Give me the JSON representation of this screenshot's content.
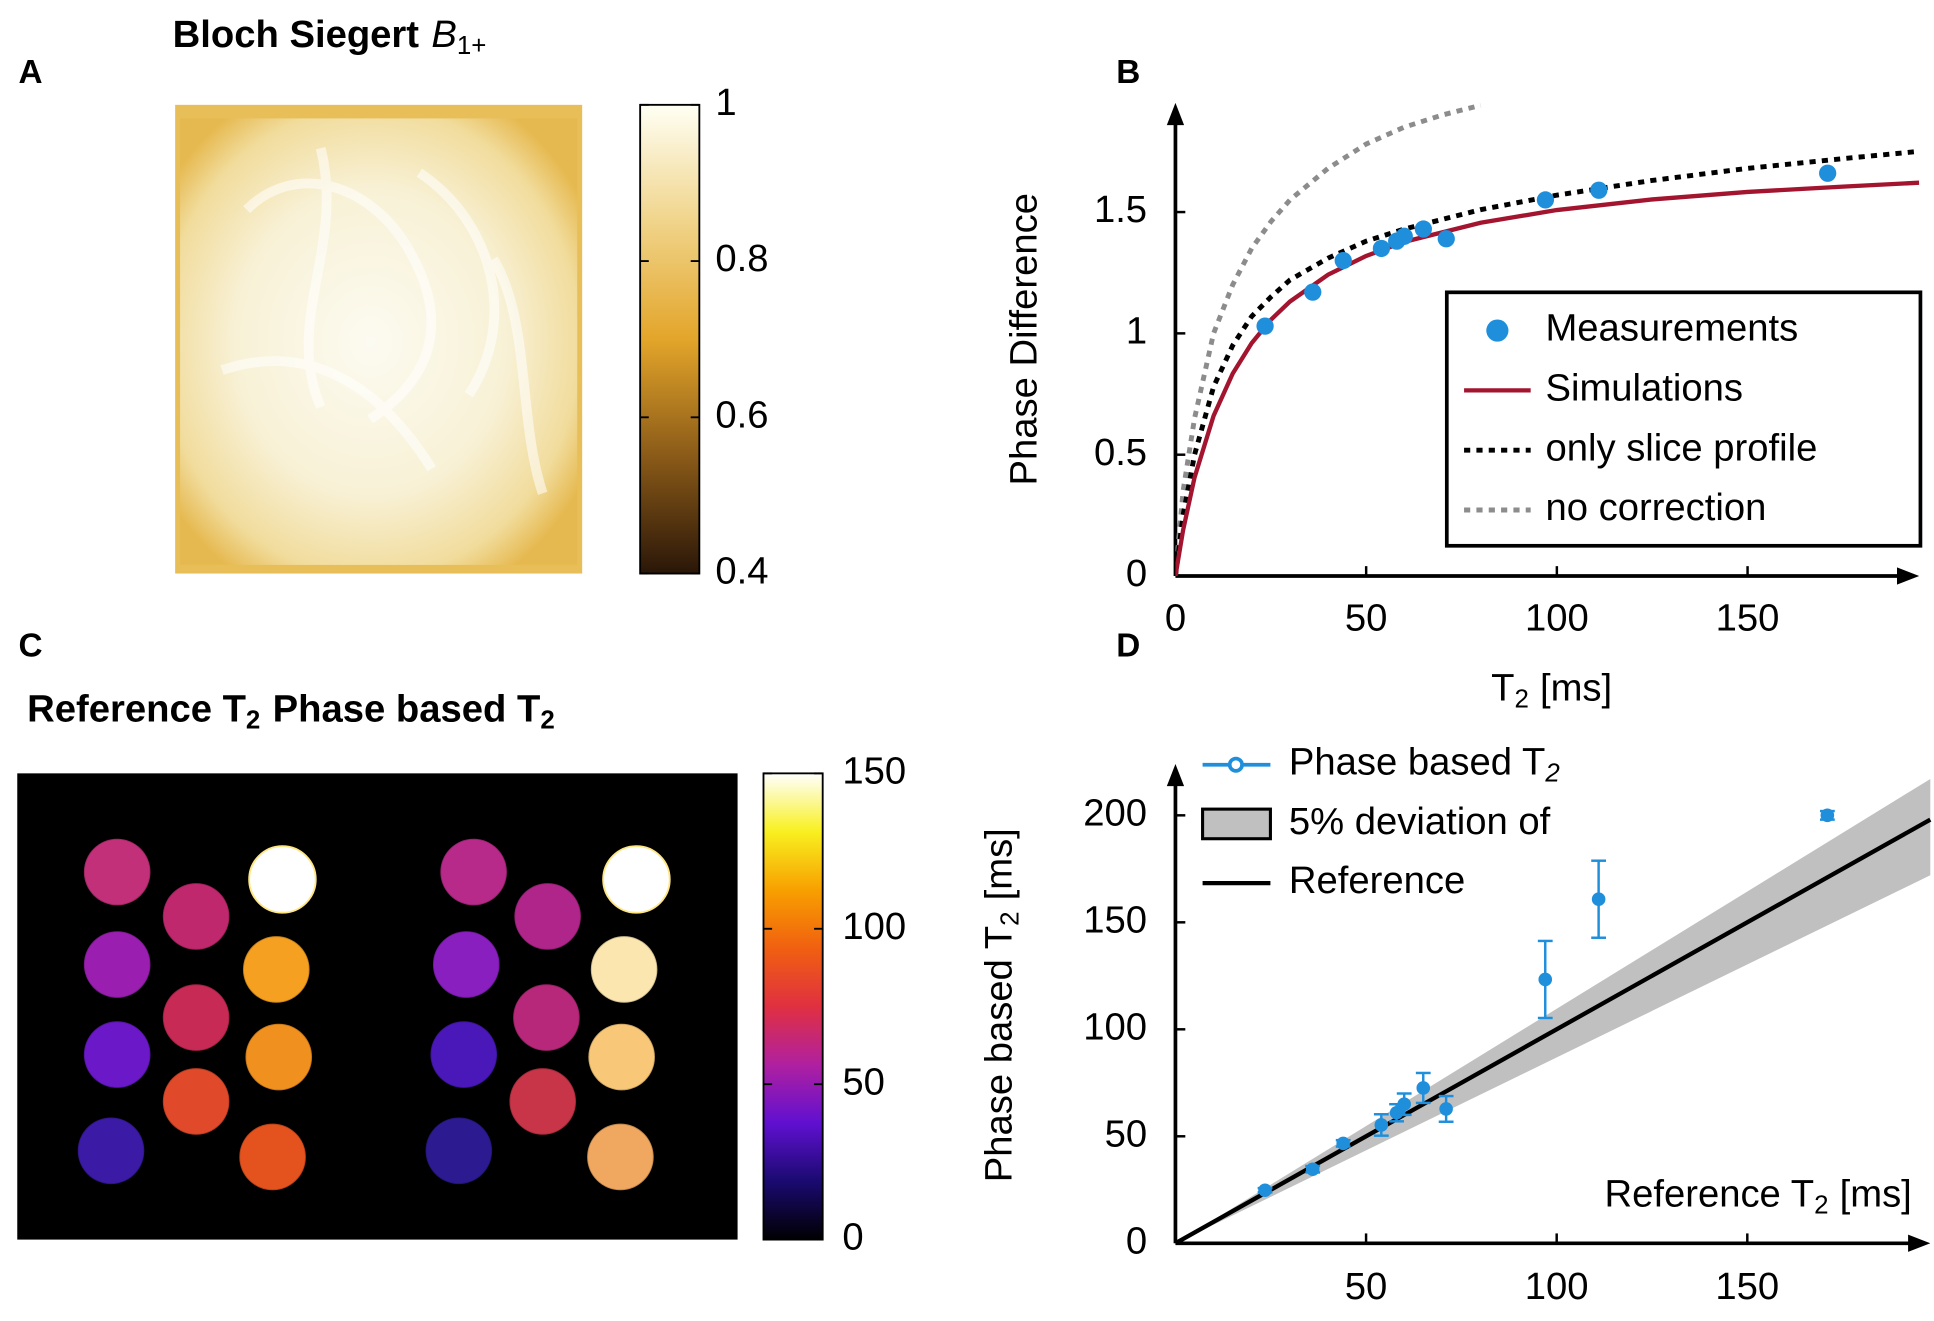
{
  "chart_data": [
    {
      "type": "image",
      "panel_label": "A",
      "title": [
        "Bloch Siegert",
        "B",
        "1+"
      ],
      "colormap": [
        "#2a1608",
        "#8a5a18",
        "#e3a52a",
        "#f0d48a",
        "#fffff4"
      ],
      "clim": [
        0.4,
        1
      ],
      "cticks": [
        0.4,
        0.6,
        0.8,
        1
      ]
    },
    {
      "type": "line",
      "panel_label": "B",
      "xlabel": [
        "T",
        "2",
        "[ms]"
      ],
      "ylabel": "Phase Difference",
      "xlim": [
        0,
        195
      ],
      "ylim": [
        0,
        1.95
      ],
      "xticks": [
        0,
        50,
        100,
        150
      ],
      "yticks": [
        0,
        0.5,
        1,
        1.5
      ],
      "legend": "lower right",
      "series": [
        {
          "name": "Measurements",
          "style": "markers",
          "color": "#1f8fdc",
          "x": [
            23.5,
            36,
            44,
            54,
            58,
            60,
            65,
            71,
            97,
            111,
            171
          ],
          "values": [
            1.03,
            1.17,
            1.3,
            1.35,
            1.38,
            1.4,
            1.43,
            1.39,
            1.55,
            1.59,
            1.66
          ]
        },
        {
          "name": "Simulations",
          "style": "solid",
          "color": "#a3142f",
          "x": [
            0,
            2,
            5,
            10,
            15,
            20,
            25,
            30,
            40,
            50,
            60,
            80,
            100,
            125,
            150,
            175,
            195
          ],
          "values": [
            0,
            0.189,
            0.406,
            0.66,
            0.834,
            0.96,
            1.056,
            1.131,
            1.242,
            1.319,
            1.377,
            1.456,
            1.508,
            1.552,
            1.583,
            1.605,
            1.621
          ]
        },
        {
          "name": "only slice profile",
          "style": "dotted",
          "color": "#000000",
          "x": [
            0,
            2,
            5,
            10,
            15,
            20,
            25,
            30,
            40,
            50,
            60,
            80,
            100,
            125,
            150,
            175,
            195
          ],
          "values": [
            0,
            0.25,
            0.5,
            0.78,
            0.95,
            1.07,
            1.15,
            1.22,
            1.31,
            1.38,
            1.43,
            1.51,
            1.57,
            1.63,
            1.68,
            1.72,
            1.75
          ]
        },
        {
          "name": "no correction",
          "style": "dotted",
          "color": "#8c8c8c",
          "x": [
            0,
            2,
            5,
            10,
            15,
            20,
            25,
            30,
            40,
            50,
            60,
            70,
            80
          ],
          "values": [
            0,
            0.35,
            0.65,
            1.0,
            1.2,
            1.35,
            1.46,
            1.55,
            1.68,
            1.78,
            1.85,
            1.9,
            1.94
          ]
        }
      ]
    },
    {
      "type": "image",
      "panel_label": "C",
      "title": [
        [
          "Reference T",
          "2"
        ],
        [
          "Phase based T",
          "2"
        ]
      ],
      "colormap": [
        "#000000",
        "#1a0a70",
        "#6010d0",
        "#b020a0",
        "#e03040",
        "#f06010",
        "#f8a000",
        "#f8f020",
        "#ffffff"
      ],
      "clim": [
        0,
        150
      ],
      "cticks": [
        0,
        50,
        100,
        150
      ]
    },
    {
      "type": "errorbar",
      "panel_label": "D",
      "xlabel": [
        "Reference T",
        "2",
        "[ms]"
      ],
      "ylabel": [
        "Phase based T",
        "2",
        "[ms]"
      ],
      "xlim": [
        0,
        198
      ],
      "ylim": [
        0,
        224
      ],
      "xticks": [
        50,
        100,
        150
      ],
      "yticks": [
        0,
        50,
        100,
        150,
        200
      ],
      "series": [
        {
          "name": "Phase based T",
          "name_subscript": "2",
          "color": "#1f8fdc",
          "x": [
            23.5,
            36,
            44,
            54,
            58,
            60,
            65,
            71,
            97,
            111,
            171
          ],
          "values": [
            24.8,
            34.6,
            46.7,
            55.3,
            61,
            65,
            72.6,
            62.8,
            123.3,
            160.8,
            200
          ],
          "errors": [
            1,
            1.5,
            1.5,
            5,
            4,
            5,
            7,
            6,
            18,
            18,
            2
          ]
        }
      ],
      "band": {
        "name": "5% deviation of",
        "color": "#c0c0c0",
        "x": [
          0,
          198
        ],
        "lower": [
          0,
          172
        ],
        "upper": [
          0,
          217
        ]
      },
      "reference": {
        "name": "Reference",
        "color": "#000000",
        "x": [
          0,
          198
        ],
        "values": [
          0,
          198
        ]
      }
    }
  ]
}
